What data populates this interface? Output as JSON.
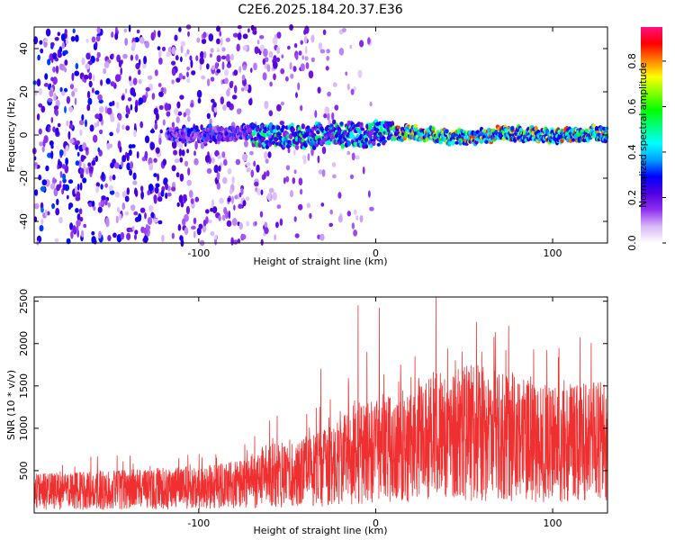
{
  "figure_title": "C2E6.2025.184.20.37.E36",
  "chart_data": [
    {
      "type": "heatmap",
      "xlabel": "Height of straight line (km)",
      "ylabel": "Frequency (Hz)",
      "xlim": [
        -193,
        131
      ],
      "ylim": [
        -50,
        50
      ],
      "xticks": [
        -100,
        0,
        100
      ],
      "yticks": [
        -40,
        -20,
        0,
        20,
        40
      ],
      "colorbar": {
        "label": "Normalized spectral amplitude",
        "range": [
          0,
          0.95
        ],
        "ticks": [
          0.0,
          0.2,
          0.4,
          0.6,
          0.8
        ],
        "colors": [
          "#ffffff",
          "#d8b8f8",
          "#9030f0",
          "#5000e0",
          "#0000ff",
          "#00a0ff",
          "#00ffff",
          "#00ff80",
          "#00ff00",
          "#80ff00",
          "#ffff00",
          "#ff8000",
          "#ff0000",
          "#ff1080"
        ]
      },
      "features": [
        {
          "x_range": [
            -193,
            -20
          ],
          "description_values": "scattered low amplitude spots 0.1-0.3 across all frequencies"
        },
        {
          "x_range": [
            -118,
            131
          ],
          "center_frequency_hz": 0,
          "peak_amplitude": 0.9
        }
      ]
    },
    {
      "type": "line",
      "xlabel": "Height of straight line (km)",
      "ylabel": "SNR (10 * v/v)",
      "xlim": [
        -193,
        131
      ],
      "ylim": [
        0,
        2550
      ],
      "xticks": [
        -100,
        0,
        100
      ],
      "yticks": [
        500,
        1000,
        1500,
        2000,
        2500
      ],
      "series": [
        {
          "color": "#f03030",
          "envelope_x": [
            -193,
            -150,
            -100,
            -75,
            -60,
            -45,
            -30,
            -20,
            -5,
            0,
            15,
            35,
            55,
            75,
            100,
            120,
            131
          ],
          "envelope_mean": [
            250,
            270,
            300,
            340,
            450,
            480,
            520,
            600,
            750,
            700,
            800,
            900,
            950,
            900,
            800,
            850,
            850
          ],
          "peaks": [
            [
              -10,
              2450
            ],
            [
              2,
              2420
            ],
            [
              34,
              2550
            ],
            [
              -5,
              1900
            ],
            [
              20,
              1600
            ],
            [
              45,
              1800
            ],
            [
              -31,
              1700
            ],
            [
              -20,
              1200
            ],
            [
              60,
              1900
            ],
            [
              90,
              1450
            ]
          ]
        }
      ]
    }
  ]
}
